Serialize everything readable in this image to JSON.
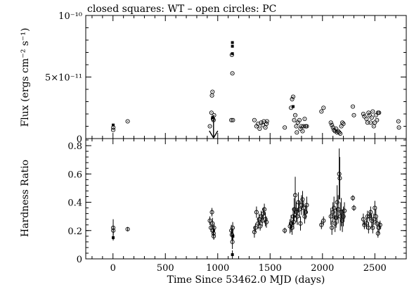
{
  "chart_data": [
    {
      "type": "scatter",
      "title": "closed squares: WT – open circles: PC",
      "ylabel": "Flux (ergs cm⁻² s⁻¹)",
      "xlim": [
        -260,
        2800
      ],
      "ylim": [
        0,
        1e-10
      ],
      "y_ticks": [
        0,
        5e-11,
        1e-10
      ],
      "y_tick_labels": [
        "0",
        "5×10⁻¹¹",
        "10⁻¹⁰"
      ],
      "arrow_annotation": {
        "x": 960
      },
      "series": [
        {
          "name": "WT",
          "marker": "closed squares",
          "points": [
            {
              "x": 2,
              "y": 1.1e-11
            },
            {
              "x": 950,
              "y": 1.7e-11
            },
            {
              "x": 1140,
              "y": 7.5e-11
            },
            {
              "x": 1140,
              "y": 7.8e-11
            },
            {
              "x": 1140,
              "y": 6.9e-11
            },
            {
              "x": 1720,
              "y": 2.6e-11
            }
          ]
        },
        {
          "name": "PC",
          "marker": "open circles",
          "points": [
            {
              "x": 2,
              "y": 7e-12
            },
            {
              "x": 3,
              "y": 9e-12
            },
            {
              "x": 140,
              "y": 1.4e-11
            },
            {
              "x": 925,
              "y": 1e-11
            },
            {
              "x": 940,
              "y": 2.1e-11
            },
            {
              "x": 945,
              "y": 3.5e-11
            },
            {
              "x": 950,
              "y": 3.8e-11
            },
            {
              "x": 955,
              "y": 1.6e-11
            },
            {
              "x": 960,
              "y": 1.5e-11
            },
            {
              "x": 965,
              "y": 1.9e-11
            },
            {
              "x": 1135,
              "y": 6.8e-11
            },
            {
              "x": 1140,
              "y": 5.3e-11
            },
            {
              "x": 1130,
              "y": 1.5e-11
            },
            {
              "x": 1145,
              "y": 1.5e-11
            },
            {
              "x": 1350,
              "y": 1.5e-11
            },
            {
              "x": 1370,
              "y": 1e-11
            },
            {
              "x": 1385,
              "y": 1.2e-11
            },
            {
              "x": 1400,
              "y": 8e-12
            },
            {
              "x": 1415,
              "y": 1.3e-11
            },
            {
              "x": 1430,
              "y": 1.1e-11
            },
            {
              "x": 1440,
              "y": 1.4e-11
            },
            {
              "x": 1455,
              "y": 9e-12
            },
            {
              "x": 1465,
              "y": 1.2e-11
            },
            {
              "x": 1470,
              "y": 1.4e-11
            },
            {
              "x": 1640,
              "y": 9e-12
            },
            {
              "x": 1700,
              "y": 2.5e-11
            },
            {
              "x": 1710,
              "y": 3.2e-11
            },
            {
              "x": 1720,
              "y": 3.4e-11
            },
            {
              "x": 1730,
              "y": 1.5e-11
            },
            {
              "x": 1740,
              "y": 1.9e-11
            },
            {
              "x": 1750,
              "y": 1e-11
            },
            {
              "x": 1755,
              "y": 5e-12
            },
            {
              "x": 1765,
              "y": 1.3e-11
            },
            {
              "x": 1780,
              "y": 1.5e-11
            },
            {
              "x": 1790,
              "y": 8e-12
            },
            {
              "x": 1800,
              "y": 1e-11
            },
            {
              "x": 1810,
              "y": 6e-12
            },
            {
              "x": 1820,
              "y": 1e-11
            },
            {
              "x": 1830,
              "y": 1.6e-11
            },
            {
              "x": 1840,
              "y": 1e-11
            },
            {
              "x": 1850,
              "y": 1e-11
            },
            {
              "x": 1990,
              "y": 2.2e-11
            },
            {
              "x": 2010,
              "y": 2.5e-11
            },
            {
              "x": 2080,
              "y": 1.3e-11
            },
            {
              "x": 2090,
              "y": 1.1e-11
            },
            {
              "x": 2100,
              "y": 9e-12
            },
            {
              "x": 2110,
              "y": 7e-12
            },
            {
              "x": 2120,
              "y": 6e-12
            },
            {
              "x": 2130,
              "y": 8e-12
            },
            {
              "x": 2140,
              "y": 5e-12
            },
            {
              "x": 2150,
              "y": 6e-12
            },
            {
              "x": 2160,
              "y": 5e-12
            },
            {
              "x": 2170,
              "y": 4e-12
            },
            {
              "x": 2180,
              "y": 1e-11
            },
            {
              "x": 2190,
              "y": 1.3e-11
            },
            {
              "x": 2200,
              "y": 1.2e-11
            },
            {
              "x": 2290,
              "y": 2.6e-11
            },
            {
              "x": 2300,
              "y": 1.9e-11
            },
            {
              "x": 2390,
              "y": 2e-11
            },
            {
              "x": 2400,
              "y": 1.8e-11
            },
            {
              "x": 2420,
              "y": 1.6e-11
            },
            {
              "x": 2430,
              "y": 1.3e-11
            },
            {
              "x": 2440,
              "y": 2.1e-11
            },
            {
              "x": 2450,
              "y": 1.9e-11
            },
            {
              "x": 2460,
              "y": 1.3e-11
            },
            {
              "x": 2470,
              "y": 1.7e-11
            },
            {
              "x": 2480,
              "y": 2.2e-11
            },
            {
              "x": 2490,
              "y": 1e-11
            },
            {
              "x": 2500,
              "y": 1.3e-11
            },
            {
              "x": 2510,
              "y": 1.9e-11
            },
            {
              "x": 2520,
              "y": 1.5e-11
            },
            {
              "x": 2530,
              "y": 2.1e-11
            },
            {
              "x": 2540,
              "y": 2.1e-11
            },
            {
              "x": 2725,
              "y": 1.4e-11
            },
            {
              "x": 2730,
              "y": 9e-12
            }
          ]
        }
      ]
    },
    {
      "type": "scatter",
      "xlabel": "Time Since 53462.0 MJD (days)",
      "ylabel": "Hardness Ratio",
      "xlim": [
        -260,
        2800
      ],
      "ylim": [
        0,
        0.85
      ],
      "x_ticks": [
        0,
        500,
        1000,
        1500,
        2000,
        2500
      ],
      "y_ticks": [
        0,
        0.2,
        0.4,
        0.6,
        0.8
      ],
      "y_tick_labels": [
        "0",
        "0.2",
        "0.4",
        "0.6",
        "0.8"
      ],
      "series": [
        {
          "name": "WT",
          "marker": "closed squares",
          "points": [
            {
              "x": 2,
              "y": 0.15,
              "err": 0.02
            },
            {
              "x": 1140,
              "y": 0.03,
              "err": 0.03
            },
            {
              "x": 1145,
              "y": 0.16,
              "err": 0.03
            }
          ]
        },
        {
          "name": "PC",
          "marker": "open circles",
          "points": [
            {
              "x": 2,
              "y": 0.22,
              "err": 0.06
            },
            {
              "x": 3,
              "y": 0.2,
              "err": 0.03
            },
            {
              "x": 140,
              "y": 0.21,
              "err": 0.015
            },
            {
              "x": 925,
              "y": 0.27,
              "err": 0.03
            },
            {
              "x": 935,
              "y": 0.22,
              "err": 0.03
            },
            {
              "x": 945,
              "y": 0.33,
              "err": 0.03
            },
            {
              "x": 950,
              "y": 0.25,
              "err": 0.04
            },
            {
              "x": 955,
              "y": 0.2,
              "err": 0.03
            },
            {
              "x": 960,
              "y": 0.18,
              "err": 0.03
            },
            {
              "x": 962,
              "y": 0.16,
              "err": 0.025
            },
            {
              "x": 965,
              "y": 0.22,
              "err": 0.03
            },
            {
              "x": 1130,
              "y": 0.2,
              "err": 0.04
            },
            {
              "x": 1135,
              "y": 0.17,
              "err": 0.04
            },
            {
              "x": 1140,
              "y": 0.12,
              "err": 0.05
            },
            {
              "x": 1143,
              "y": 0.22,
              "err": 0.04
            },
            {
              "x": 1350,
              "y": 0.19,
              "err": 0.04
            },
            {
              "x": 1360,
              "y": 0.22,
              "err": 0.03
            },
            {
              "x": 1370,
              "y": 0.33,
              "err": 0.04
            },
            {
              "x": 1385,
              "y": 0.25,
              "err": 0.04
            },
            {
              "x": 1395,
              "y": 0.28,
              "err": 0.04
            },
            {
              "x": 1405,
              "y": 0.23,
              "err": 0.03
            },
            {
              "x": 1415,
              "y": 0.3,
              "err": 0.04
            },
            {
              "x": 1425,
              "y": 0.27,
              "err": 0.04
            },
            {
              "x": 1435,
              "y": 0.32,
              "err": 0.04
            },
            {
              "x": 1445,
              "y": 0.35,
              "err": 0.04
            },
            {
              "x": 1455,
              "y": 0.28,
              "err": 0.05
            },
            {
              "x": 1465,
              "y": 0.26,
              "err": 0.04
            },
            {
              "x": 1640,
              "y": 0.2,
              "err": 0.02
            },
            {
              "x": 1690,
              "y": 0.23,
              "err": 0.05
            },
            {
              "x": 1700,
              "y": 0.25,
              "err": 0.06
            },
            {
              "x": 1710,
              "y": 0.22,
              "err": 0.05
            },
            {
              "x": 1720,
              "y": 0.3,
              "err": 0.06
            },
            {
              "x": 1725,
              "y": 0.26,
              "err": 0.05
            },
            {
              "x": 1730,
              "y": 0.35,
              "err": 0.08
            },
            {
              "x": 1740,
              "y": 0.45,
              "err": 0.13
            },
            {
              "x": 1750,
              "y": 0.33,
              "err": 0.07
            },
            {
              "x": 1760,
              "y": 0.3,
              "err": 0.06
            },
            {
              "x": 1770,
              "y": 0.4,
              "err": 0.07
            },
            {
              "x": 1780,
              "y": 0.35,
              "err": 0.06
            },
            {
              "x": 1790,
              "y": 0.25,
              "err": 0.05
            },
            {
              "x": 1800,
              "y": 0.38,
              "err": 0.07
            },
            {
              "x": 1810,
              "y": 0.42,
              "err": 0.06
            },
            {
              "x": 1820,
              "y": 0.36,
              "err": 0.05
            },
            {
              "x": 1830,
              "y": 0.3,
              "err": 0.05
            },
            {
              "x": 1840,
              "y": 0.33,
              "err": 0.05
            },
            {
              "x": 1850,
              "y": 0.38,
              "err": 0.06
            },
            {
              "x": 1990,
              "y": 0.24,
              "err": 0.03
            },
            {
              "x": 2010,
              "y": 0.27,
              "err": 0.03
            },
            {
              "x": 2080,
              "y": 0.3,
              "err": 0.06
            },
            {
              "x": 2090,
              "y": 0.22,
              "err": 0.05
            },
            {
              "x": 2100,
              "y": 0.33,
              "err": 0.07
            },
            {
              "x": 2110,
              "y": 0.36,
              "err": 0.08
            },
            {
              "x": 2120,
              "y": 0.25,
              "err": 0.06
            },
            {
              "x": 2130,
              "y": 0.29,
              "err": 0.07
            },
            {
              "x": 2140,
              "y": 0.4,
              "err": 0.12
            },
            {
              "x": 2150,
              "y": 0.35,
              "err": 0.1
            },
            {
              "x": 2160,
              "y": 0.6,
              "err": 0.18
            },
            {
              "x": 2165,
              "y": 0.57,
              "err": 0.15
            },
            {
              "x": 2170,
              "y": 0.3,
              "err": 0.1
            },
            {
              "x": 2180,
              "y": 0.33,
              "err": 0.1
            },
            {
              "x": 2190,
              "y": 0.27,
              "err": 0.08
            },
            {
              "x": 2200,
              "y": 0.3,
              "err": 0.07
            },
            {
              "x": 2210,
              "y": 0.34,
              "err": 0.06
            },
            {
              "x": 2290,
              "y": 0.43,
              "err": 0.02
            },
            {
              "x": 2300,
              "y": 0.36,
              "err": 0.02
            },
            {
              "x": 2390,
              "y": 0.28,
              "err": 0.04
            },
            {
              "x": 2400,
              "y": 0.24,
              "err": 0.03
            },
            {
              "x": 2420,
              "y": 0.25,
              "err": 0.04
            },
            {
              "x": 2430,
              "y": 0.3,
              "err": 0.04
            },
            {
              "x": 2440,
              "y": 0.22,
              "err": 0.04
            },
            {
              "x": 2450,
              "y": 0.3,
              "err": 0.03
            },
            {
              "x": 2460,
              "y": 0.33,
              "err": 0.04
            },
            {
              "x": 2470,
              "y": 0.27,
              "err": 0.05
            },
            {
              "x": 2480,
              "y": 0.22,
              "err": 0.04
            },
            {
              "x": 2490,
              "y": 0.28,
              "err": 0.04
            },
            {
              "x": 2500,
              "y": 0.36,
              "err": 0.05
            },
            {
              "x": 2510,
              "y": 0.3,
              "err": 0.05
            },
            {
              "x": 2520,
              "y": 0.25,
              "err": 0.04
            },
            {
              "x": 2530,
              "y": 0.18,
              "err": 0.03
            },
            {
              "x": 2540,
              "y": 0.22,
              "err": 0.04
            },
            {
              "x": 2550,
              "y": 0.24,
              "err": 0.03
            }
          ]
        }
      ]
    }
  ]
}
